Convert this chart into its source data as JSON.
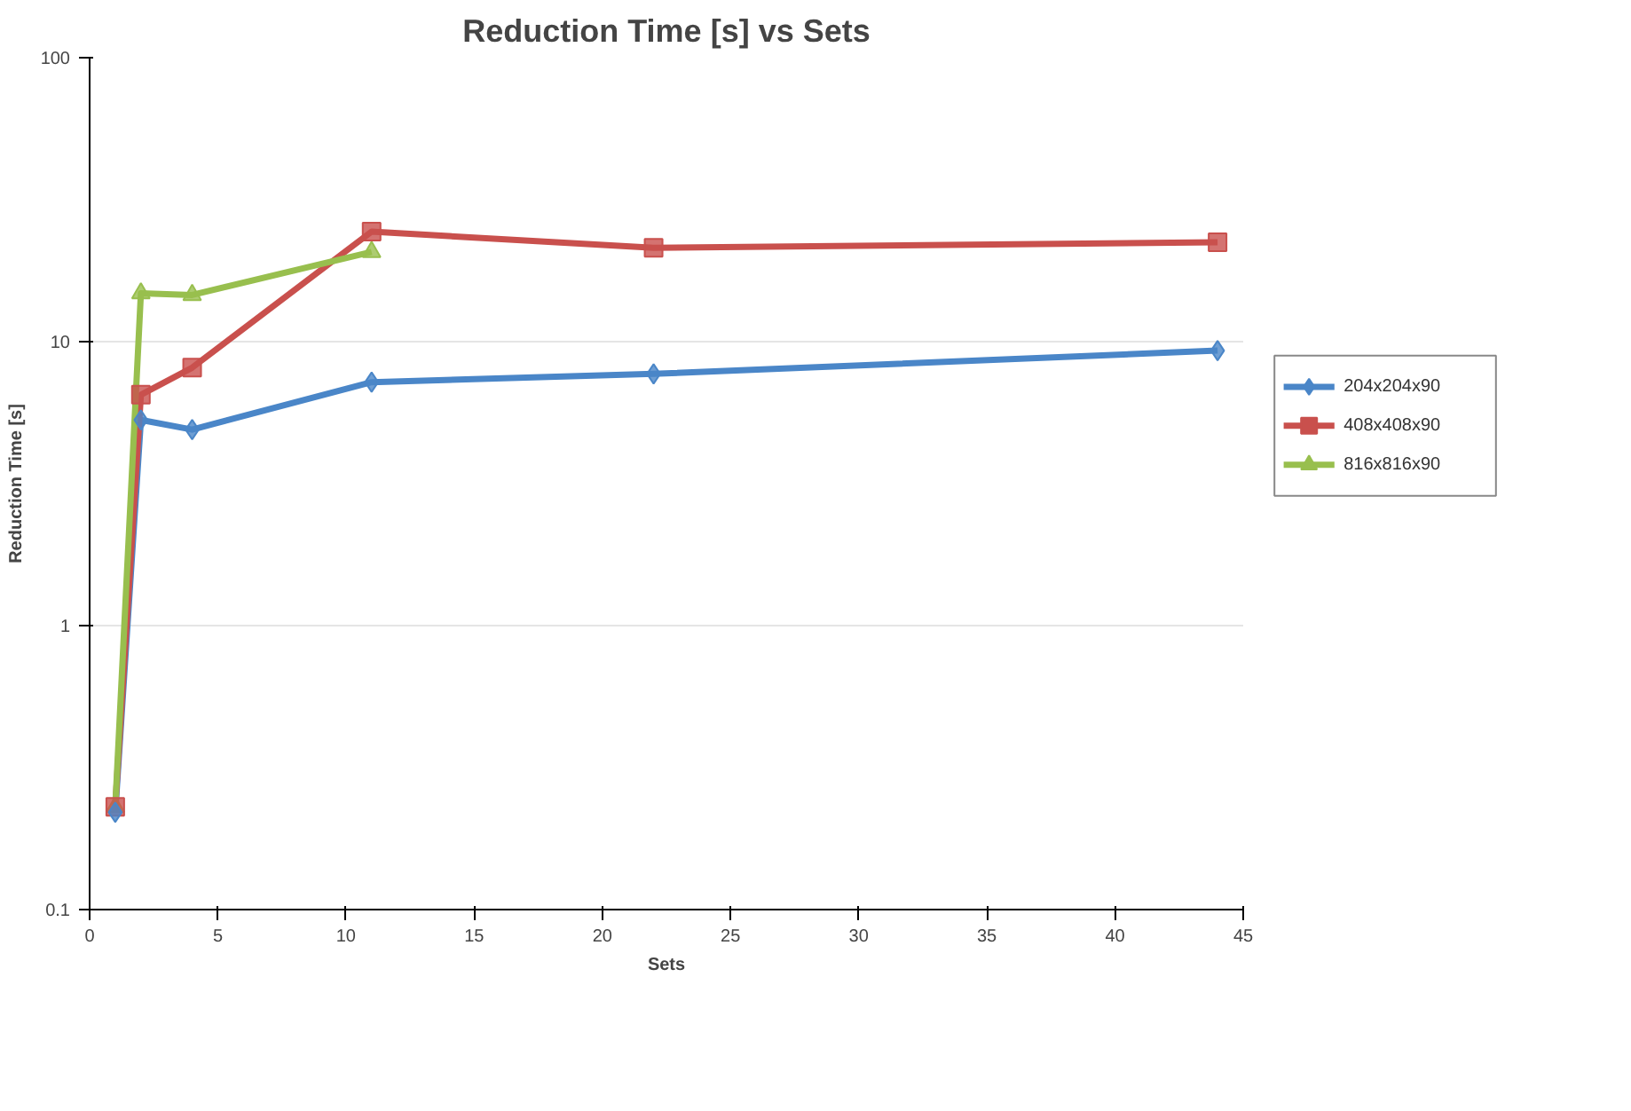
{
  "chart_data": {
    "type": "line",
    "title": "Reduction Time [s] vs Sets",
    "xlabel": "Sets",
    "ylabel": "Reduction Time [s]",
    "x": [
      1,
      2,
      4,
      11,
      22,
      44
    ],
    "series": [
      {
        "name": "204x204x90",
        "color": "#4a86c8",
        "marker": "diamond",
        "values": [
          0.22,
          5.3,
          4.9,
          7.2,
          7.7,
          9.3
        ]
      },
      {
        "name": "408x408x90",
        "color": "#c9504d",
        "marker": "square",
        "values": [
          0.23,
          6.5,
          8.1,
          24.4,
          21.4,
          22.4
        ]
      },
      {
        "name": "816x816x90",
        "color": "#98bf4e",
        "marker": "triangle",
        "x": [
          1,
          2,
          4,
          11
        ],
        "values": [
          0.23,
          14.8,
          14.6,
          20.7
        ]
      }
    ],
    "log": "y",
    "xlim": [
      0,
      45
    ],
    "ylim": [
      0.1,
      100
    ],
    "xticks": [
      0,
      5,
      10,
      15,
      20,
      25,
      30,
      35,
      40,
      45
    ],
    "yticks": [
      0.1,
      1,
      10,
      100
    ],
    "grid": "y",
    "legend": "right",
    "line_style": "solid"
  }
}
